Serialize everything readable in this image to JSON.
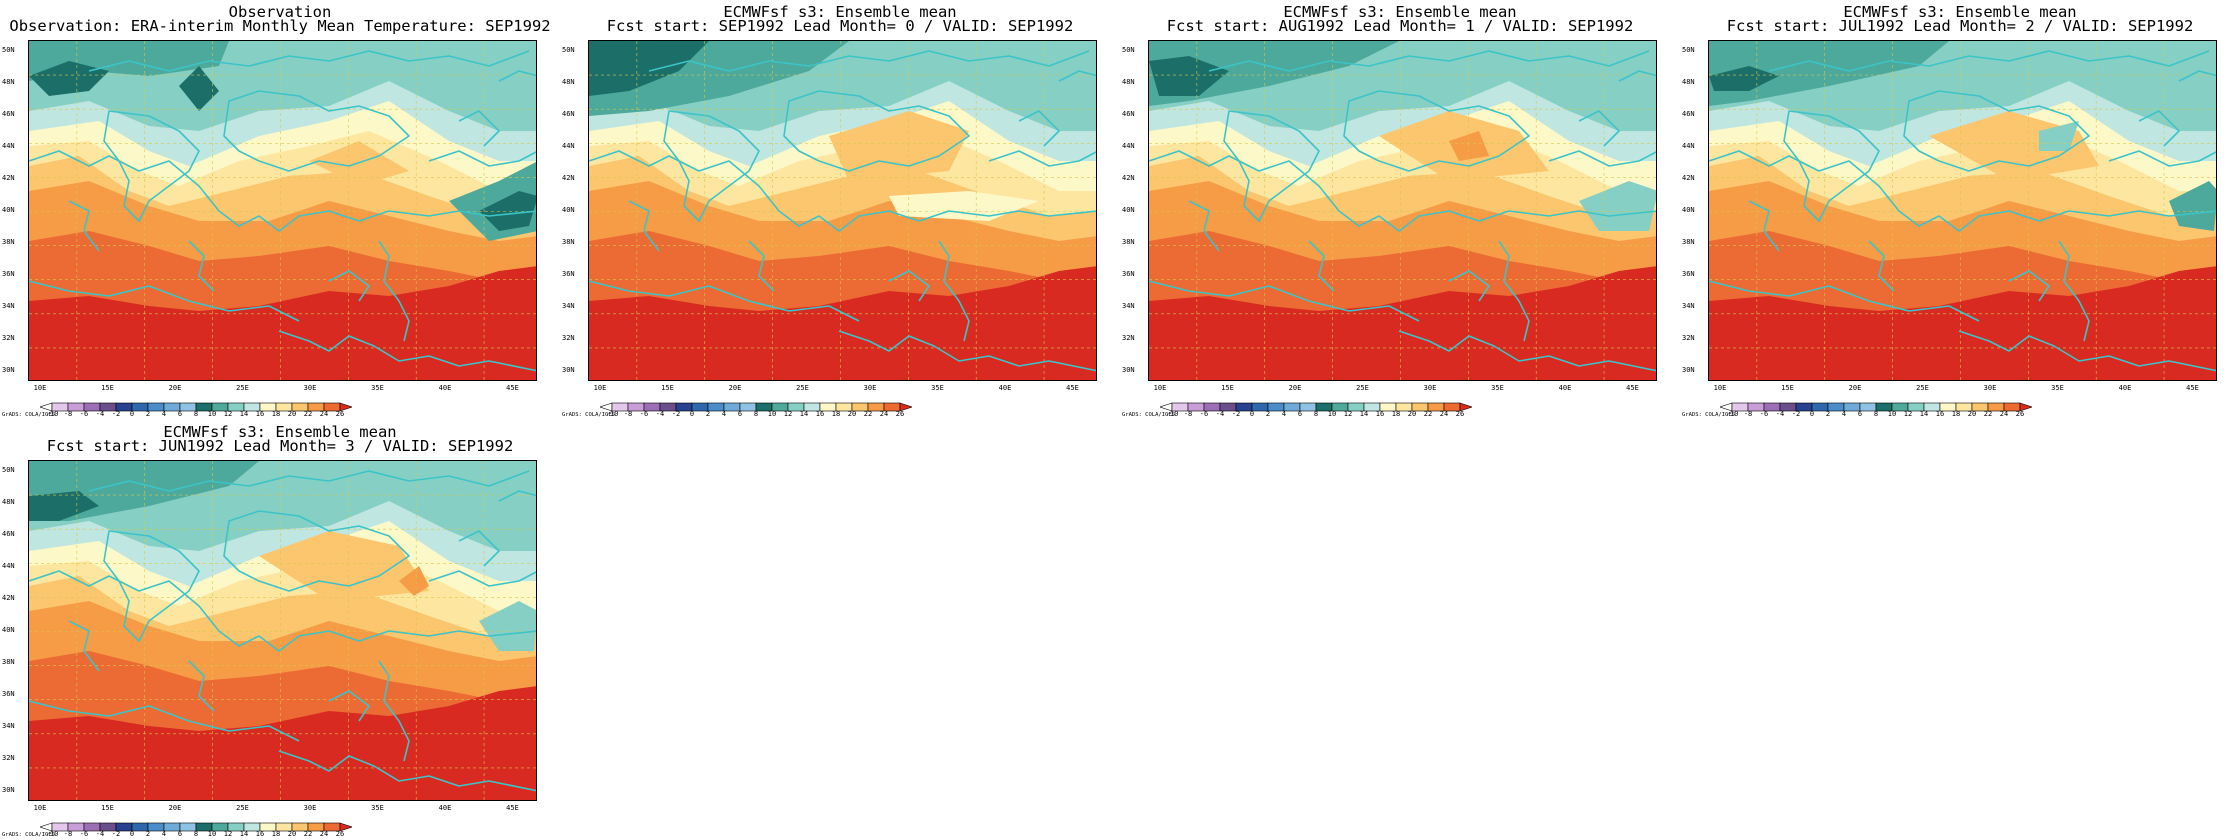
{
  "panels": [
    {
      "title_line1": "Observation",
      "title_line2": "Observation: ERA-interim Monthly Mean Temperature: SEP1992",
      "field": "obs"
    },
    {
      "title_line1": "ECMWFsf s3: Ensemble mean",
      "title_line2": "Fcst start: SEP1992  Lead Month= 0 / VALID: SEP1992",
      "field": "lead0"
    },
    {
      "title_line1": "ECMWFsf s3: Ensemble mean",
      "title_line2": "Fcst start: AUG1992  Lead Month= 1 / VALID: SEP1992",
      "field": "lead1"
    },
    {
      "title_line1": "ECMWFsf s3: Ensemble mean",
      "title_line2": "Fcst start: JUL1992  Lead Month= 2 / VALID: SEP1992",
      "field": "lead2"
    },
    {
      "title_line1": "ECMWFsf s3: Ensemble mean",
      "title_line2": "Fcst start: JUN1992  Lead Month= 3 / VALID: SEP1992",
      "field": "lead3"
    }
  ],
  "lat_labels": [
    "50N",
    "48N",
    "46N",
    "44N",
    "42N",
    "40N",
    "38N",
    "36N",
    "34N",
    "32N",
    "30N"
  ],
  "lon_labels": [
    "10E",
    "15E",
    "20E",
    "25E",
    "30E",
    "35E",
    "40E",
    "45E"
  ],
  "colorbar": {
    "labels": [
      "-10",
      "-8",
      "-6",
      "-4",
      "-2",
      "0",
      "2",
      "4",
      "6",
      "8",
      "10",
      "12",
      "14",
      "16",
      "18",
      "20",
      "22",
      "24",
      "26"
    ],
    "colors": [
      "#ffffff",
      "#e3c8ec",
      "#c89ed8",
      "#9c6fb5",
      "#6a4f8c",
      "#27408f",
      "#2d68ad",
      "#4b8dcb",
      "#6fabd9",
      "#8fc3e4",
      "#1b6f68",
      "#4da99c",
      "#86cfc4",
      "#bfe6e0",
      "#fdf8c8",
      "#fde6a0",
      "#fcc66e",
      "#f69b46",
      "#ec6a33",
      "#d92a22"
    ]
  },
  "credit": "GrADS: COLA/IGES",
  "colors": {
    "coast": "#3cc4c8",
    "grid": "#d8c84a",
    "level_8_10": "#1b6f68",
    "level_10_12": "#4da99c",
    "level_12_14": "#86cfc4",
    "level_14_16": "#bfe6e0",
    "level_16_18": "#fdf8c8",
    "level_18_20": "#fde6a0",
    "level_20_22": "#fcc66e",
    "level_22_24": "#f69b46",
    "level_24_26": "#ec6a33",
    "level_gt_26": "#d92a22"
  }
}
